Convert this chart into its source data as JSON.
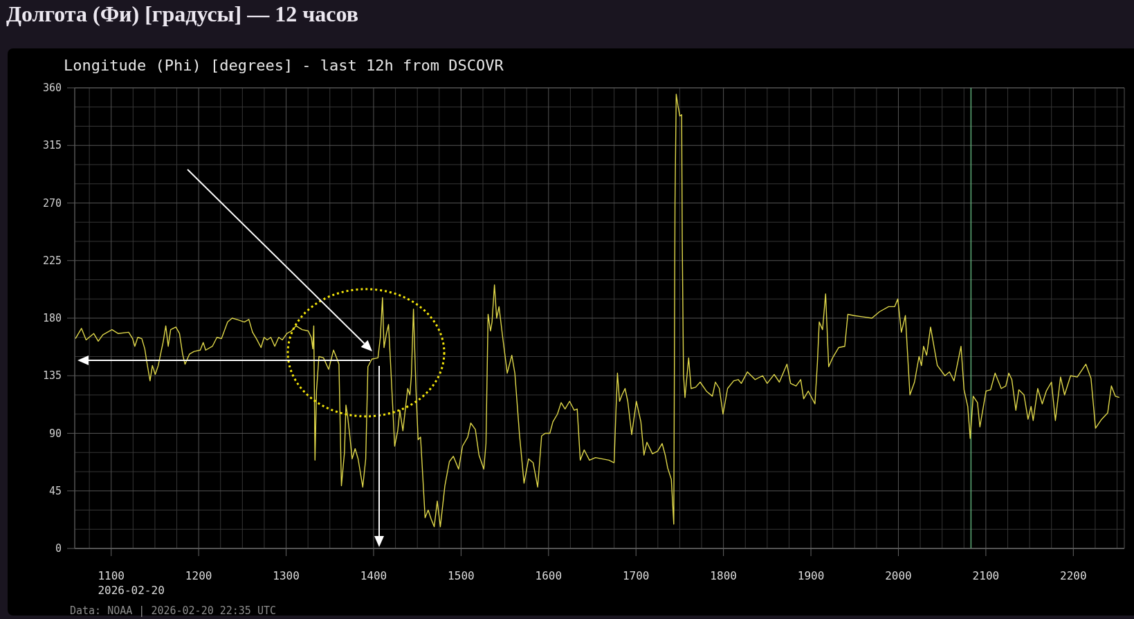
{
  "chart_data": {
    "type": "line",
    "title": "Долгота (Фи) [градусы] — 12 часов",
    "subtitle": "Longitude (Phi) [degrees] - last 12h from DSCOVR",
    "annotations": [
      "2026-02-20",
      "Data: NOAA | 2026-02-20 22:35 UTC"
    ],
    "x": [
      1059.1,
      1066,
      1071.3,
      1080,
      1085.2,
      1090.4,
      1100.9,
      1107.8,
      1120,
      1124.5,
      1127,
      1130.4,
      1135,
      1138.4,
      1140.9,
      1144.4,
      1147.1,
      1150.3,
      1153.8,
      1156.5,
      1159.3,
      1162.4,
      1165.2,
      1168,
      1173.9,
      1178.1,
      1181.6,
      1184.4,
      1189.6,
      1194.8,
      1201.8,
      1205.2,
      1208,
      1215.7,
      1220.9,
      1226.1,
      1233.1,
      1238.3,
      1243.5,
      1252.2,
      1257.4,
      1261.6,
      1266,
      1271.3,
      1274.8,
      1278.3,
      1282.5,
      1287,
      1291.5,
      1295.7,
      1300.9,
      1306.1,
      1311.4,
      1318.3,
      1325.3,
      1328.8,
      1330.5,
      1331.6,
      1333,
      1334.7,
      1337.5,
      1342.7,
      1348.6,
      1354.2,
      1358.3,
      1360.4,
      1363.2,
      1366.7,
      1368.4,
      1370.2,
      1373,
      1375.4,
      1378.9,
      1382.3,
      1387.6,
      1391,
      1393.5,
      1398,
      1405,
      1407.7,
      1410.2,
      1411.9,
      1414.7,
      1417.1,
      1419.6,
      1424.1,
      1427.6,
      1430,
      1433.5,
      1439,
      1441.5,
      1443.2,
      1445.6,
      1448.4,
      1450.9,
      1453.7,
      1458.9,
      1462.4,
      1465.8,
      1469.3,
      1472.8,
      1476.3,
      1481.5,
      1486.7,
      1491.2,
      1497.2,
      1501.7,
      1507.6,
      1511.1,
      1516.3,
      1520.5,
      1526,
      1528.5,
      1530.9,
      1533.7,
      1535.4,
      1538.2,
      1540.7,
      1543.4,
      1547.6,
      1552.8,
      1558,
      1561.5,
      1566.8,
      1572,
      1577.2,
      1582.4,
      1587.6,
      1592.1,
      1596.3,
      1601.5,
      1605,
      1610.2,
      1614.4,
      1618.9,
      1624.1,
      1629.4,
      1632.8,
      1636.3,
      1640.8,
      1646.8,
      1653.7,
      1669.1,
      1675,
      1677,
      1678.8,
      1681.2,
      1684,
      1687.5,
      1690.6,
      1695.1,
      1700.4,
      1705.6,
      1709.1,
      1712.5,
      1718.8,
      1724.7,
      1729.9,
      1733.4,
      1736.2,
      1740.4,
      1743.2,
      1744.6,
      1746,
      1748,
      1750.1,
      1752.2,
      1752.9,
      1754.3,
      1756,
      1760.2,
      1763,
      1768.2,
      1773.4,
      1780.4,
      1787.3,
      1790.8,
      1795.3,
      1799.5,
      1804.7,
      1811.7,
      1816.9,
      1820.4,
      1827.4,
      1836.1,
      1844.8,
      1850,
      1858,
      1863.9,
      1872.6,
      1876.8,
      1883,
      1888.3,
      1891.7,
      1897,
      1904.6,
      1907.4,
      1909.5,
      1913.3,
      1916.8,
      1920.3,
      1924.8,
      1931.7,
      1938.7,
      1942.2,
      1949.1,
      1959.6,
      1969.7,
      1978.4,
      1988.8,
      1995.8,
      1999.3,
      2003.4,
      2008,
      2013.2,
      2018.4,
      2023.6,
      2026.4,
      2028.8,
      2032.3,
      2036.8,
      2044.5,
      2053.2,
      2058.4,
      2063.6,
      2071.6,
      2075.1,
      2079.3,
      2082.1,
      2085.5,
      2090.4,
      2093.2,
      2100.2,
      2105.4,
      2110.6,
      2117.6,
      2122.8,
      2126.2,
      2129.7,
      2134.3,
      2137.7,
      2143.6,
      2148.2,
      2151.7,
      2154.1,
      2159.3,
      2164.5,
      2169.1,
      2175,
      2179.5,
      2185.4,
      2190,
      2196.9,
      2204.5,
      2214.3,
      2220.2,
      2225.4,
      2232.4,
      2239.3,
      2243.5,
      2248,
      2252.6
    ],
    "series": [
      {
        "color": "#e0d84a",
        "values": [
          164,
          172,
          163,
          168,
          162,
          167,
          171,
          168,
          169,
          164,
          158,
          165,
          164,
          156,
          145,
          131,
          143,
          136,
          143,
          152,
          161,
          174,
          158,
          171,
          173,
          168,
          152,
          144,
          152,
          154,
          155,
          161,
          155,
          158,
          165,
          164,
          177,
          180,
          179,
          177,
          179,
          169,
          164,
          157,
          165,
          163,
          165,
          158,
          165,
          163,
          168,
          170,
          174,
          171,
          170,
          165,
          156,
          174,
          69,
          123,
          150,
          149,
          140,
          155,
          148,
          144,
          49,
          75,
          112,
          104,
          87,
          70,
          78,
          70,
          48,
          70,
          142,
          148,
          149,
          165,
          196,
          157,
          168,
          175,
          142,
          80,
          92,
          108,
          92,
          125,
          120,
          135,
          187,
          125,
          85,
          87,
          24,
          30,
          23,
          17,
          37,
          17,
          49,
          68,
          72,
          62,
          80,
          87,
          98,
          93,
          73,
          62,
          82,
          183,
          170,
          177,
          206,
          180,
          189,
          165,
          137,
          151,
          137,
          89,
          51,
          70,
          67,
          48,
          88,
          90,
          90,
          99,
          105,
          114,
          109,
          115,
          108,
          109,
          69,
          77,
          69,
          71,
          69,
          67,
          106,
          137,
          115,
          120,
          125,
          115,
          89,
          115,
          99,
          73,
          83,
          74,
          76,
          82,
          73,
          63,
          54,
          19,
          270,
          355,
          346,
          338,
          339,
          239,
          136,
          118,
          149,
          125,
          126,
          130,
          123,
          119,
          130,
          125,
          105,
          125,
          131,
          132,
          129,
          138,
          132,
          135,
          129,
          136,
          130,
          144,
          129,
          127,
          132,
          117,
          123,
          113,
          145,
          177,
          171,
          199,
          142,
          149,
          157,
          158,
          183,
          182,
          181,
          180,
          185,
          189,
          189,
          195,
          169,
          182,
          120,
          130,
          150,
          143,
          158,
          151,
          173,
          143,
          135,
          138,
          131,
          158,
          124,
          111,
          86,
          119,
          114,
          95,
          123,
          124,
          137,
          125,
          127,
          137,
          132,
          108,
          124,
          120,
          101,
          111,
          100,
          125,
          113,
          123,
          130,
          100,
          134,
          120,
          135,
          134,
          144,
          133,
          94,
          101,
          106,
          127,
          119,
          118
        ]
      }
    ],
    "xlim": [
      1058.3,
      2258.3
    ],
    "xticks": [
      {
        "value": 1075,
        "label": null
      },
      1100,
      {
        "value": 1125,
        "label": null
      },
      {
        "value": 1150,
        "label": null
      },
      {
        "value": 1175,
        "label": null
      },
      1200,
      {
        "value": 1225,
        "label": null
      },
      {
        "value": 1250,
        "label": null
      },
      {
        "value": 1275,
        "label": null
      },
      1300,
      {
        "value": 1325,
        "label": null
      },
      {
        "value": 1350,
        "label": null
      },
      {
        "value": 1375,
        "label": null
      },
      1400,
      {
        "value": 1425,
        "label": null
      },
      {
        "value": 1450,
        "label": null
      },
      {
        "value": 1475,
        "label": null
      },
      1500,
      {
        "value": 1525,
        "label": null
      },
      {
        "value": 1550,
        "label": null
      },
      {
        "value": 1575,
        "label": null
      },
      1600,
      {
        "value": 1625,
        "label": null
      },
      {
        "value": 1650,
        "label": null
      },
      {
        "value": 1675,
        "label": null
      },
      1700,
      {
        "value": 1725,
        "label": null
      },
      {
        "value": 1750,
        "label": null
      },
      {
        "value": 1775,
        "label": null
      },
      1800,
      {
        "value": 1825,
        "label": null
      },
      {
        "value": 1850,
        "label": null
      },
      {
        "value": 1875,
        "label": null
      },
      1900,
      {
        "value": 1925,
        "label": null
      },
      {
        "value": 1950,
        "label": null
      },
      {
        "value": 1975,
        "label": null
      },
      2000,
      {
        "value": 2025,
        "label": null
      },
      {
        "value": 2050,
        "label": null
      },
      {
        "value": 2075,
        "label": null
      },
      2100,
      {
        "value": 2125,
        "label": null
      },
      {
        "value": 2150,
        "label": null
      },
      {
        "value": 2175,
        "label": null
      },
      2200,
      {
        "value": 2225,
        "label": null
      },
      {
        "value": 2250,
        "label": null
      }
    ],
    "ylim": [
      0,
      360
    ],
    "yticks": [
      0,
      {
        "value": 15,
        "label": null
      },
      {
        "value": 30,
        "label": null
      },
      45,
      {
        "value": 60,
        "label": null
      },
      {
        "value": 75,
        "label": null
      },
      90,
      {
        "value": 105,
        "label": null
      },
      {
        "value": 120,
        "label": null
      },
      135,
      {
        "value": 150,
        "label": null
      },
      {
        "value": 165,
        "label": null
      },
      180,
      {
        "value": 195,
        "label": null
      },
      {
        "value": 210,
        "label": null
      },
      225,
      {
        "value": 240,
        "label": null
      },
      {
        "value": 255,
        "label": null
      },
      270,
      {
        "value": 285,
        "label": null
      },
      {
        "value": 300,
        "label": null
      },
      315,
      {
        "value": 330,
        "label": null
      },
      {
        "value": 345,
        "label": null
      },
      360
    ],
    "grid": true,
    "ref_lines": [
      {
        "axis": "x",
        "value": 2083,
        "color": "#5fae78"
      }
    ]
  }
}
